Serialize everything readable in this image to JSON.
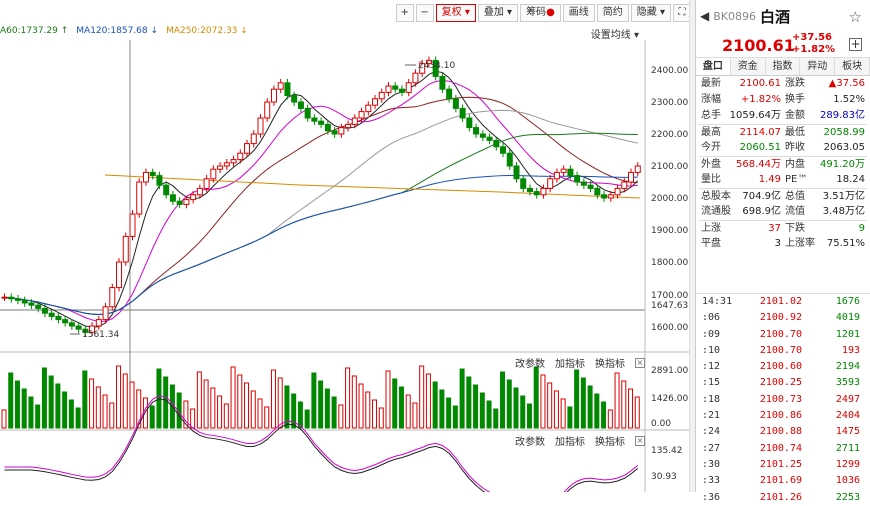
{
  "toolbar": {
    "plus": "+",
    "minus": "−",
    "adjust": "复权",
    "overlay": "叠加",
    "chips": "筹码",
    "draw": "画线",
    "shortsell": "简约",
    "hide": "隐藏",
    "expand": "⛶"
  },
  "ma_legend": [
    {
      "label": "A60:1737.29",
      "arrow": "↑",
      "color": "#1a7a1a"
    },
    {
      "label": "MA120:1857.68",
      "arrow": "↓",
      "color": "#1a4fbf"
    },
    {
      "label": "MA250:2072.33",
      "arrow": "↓",
      "color": "#d98a00"
    }
  ],
  "settings_label": "设置均线",
  "price_axis": [
    "2400.00",
    "2300.00",
    "2200.00",
    "2100.00",
    "2000.00",
    "1900.00",
    "1800.00",
    "1700.00",
    "1647.63",
    "1600.00"
  ],
  "annotations": {
    "high": "2434.10",
    "low": "1561.34"
  },
  "vol_axis": [
    "2891.00",
    "1426.00",
    "0.00"
  ],
  "macd_axis": [
    "135.42",
    "30.93"
  ],
  "panel_tools": {
    "params": "改参数",
    "add": "加指标",
    "swap": "换指标"
  },
  "side": {
    "code": "BK0896",
    "name": "白酒",
    "price": "2100.61",
    "change": "+37.56",
    "pct": "+1.82%",
    "tabs": [
      "盘口",
      "资金",
      "指数",
      "异动",
      "板块"
    ],
    "stats": [
      [
        "最新",
        "2100.61",
        "red",
        "涨跌",
        "▲37.56",
        "red"
      ],
      [
        "涨幅",
        "+1.82%",
        "red",
        "换手",
        "1.52%",
        ""
      ],
      [
        "总手",
        "1059.64万",
        "",
        "金额",
        "289.83亿",
        "blue"
      ],
      [
        "最高",
        "2114.07",
        "red",
        "最低",
        "2058.99",
        "green"
      ],
      [
        "今开",
        "2060.51",
        "green",
        "昨收",
        "2063.05",
        ""
      ],
      [
        "外盘",
        "568.44万",
        "red",
        "内盘",
        "491.20万",
        "green"
      ],
      [
        "量比",
        "1.49",
        "red",
        "PE™",
        "18.24",
        ""
      ],
      [
        "总股本",
        "704.9亿",
        "",
        "总值",
        "3.51万亿",
        ""
      ],
      [
        "流通股",
        "698.9亿",
        "",
        "流值",
        "3.48万亿",
        ""
      ],
      [
        "上涨",
        "37",
        "red",
        "下跌",
        "9",
        "green"
      ],
      [
        "平盘",
        "3",
        "",
        "上涨率",
        "75.51%",
        ""
      ]
    ],
    "trades": [
      [
        "14:31",
        "2101.02",
        "1676",
        "green"
      ],
      [
        ":06",
        "2100.92",
        "4019",
        "green"
      ],
      [
        ":09",
        "2100.70",
        "1201",
        "green"
      ],
      [
        ":10",
        "2100.70",
        "193",
        "red"
      ],
      [
        ":12",
        "2100.60",
        "2194",
        "green"
      ],
      [
        ":15",
        "2100.25",
        "3593",
        "green"
      ],
      [
        ":18",
        "2100.73",
        "2497",
        "red"
      ],
      [
        ":21",
        "2100.86",
        "2404",
        "red"
      ],
      [
        ":24",
        "2100.88",
        "1475",
        "red"
      ],
      [
        ":27",
        "2100.74",
        "2711",
        "green"
      ],
      [
        ":30",
        "2101.25",
        "1299",
        "red"
      ],
      [
        ":33",
        "2101.69",
        "1036",
        "red"
      ],
      [
        ":36",
        "2101.26",
        "2253",
        "green"
      ]
    ]
  }
}
